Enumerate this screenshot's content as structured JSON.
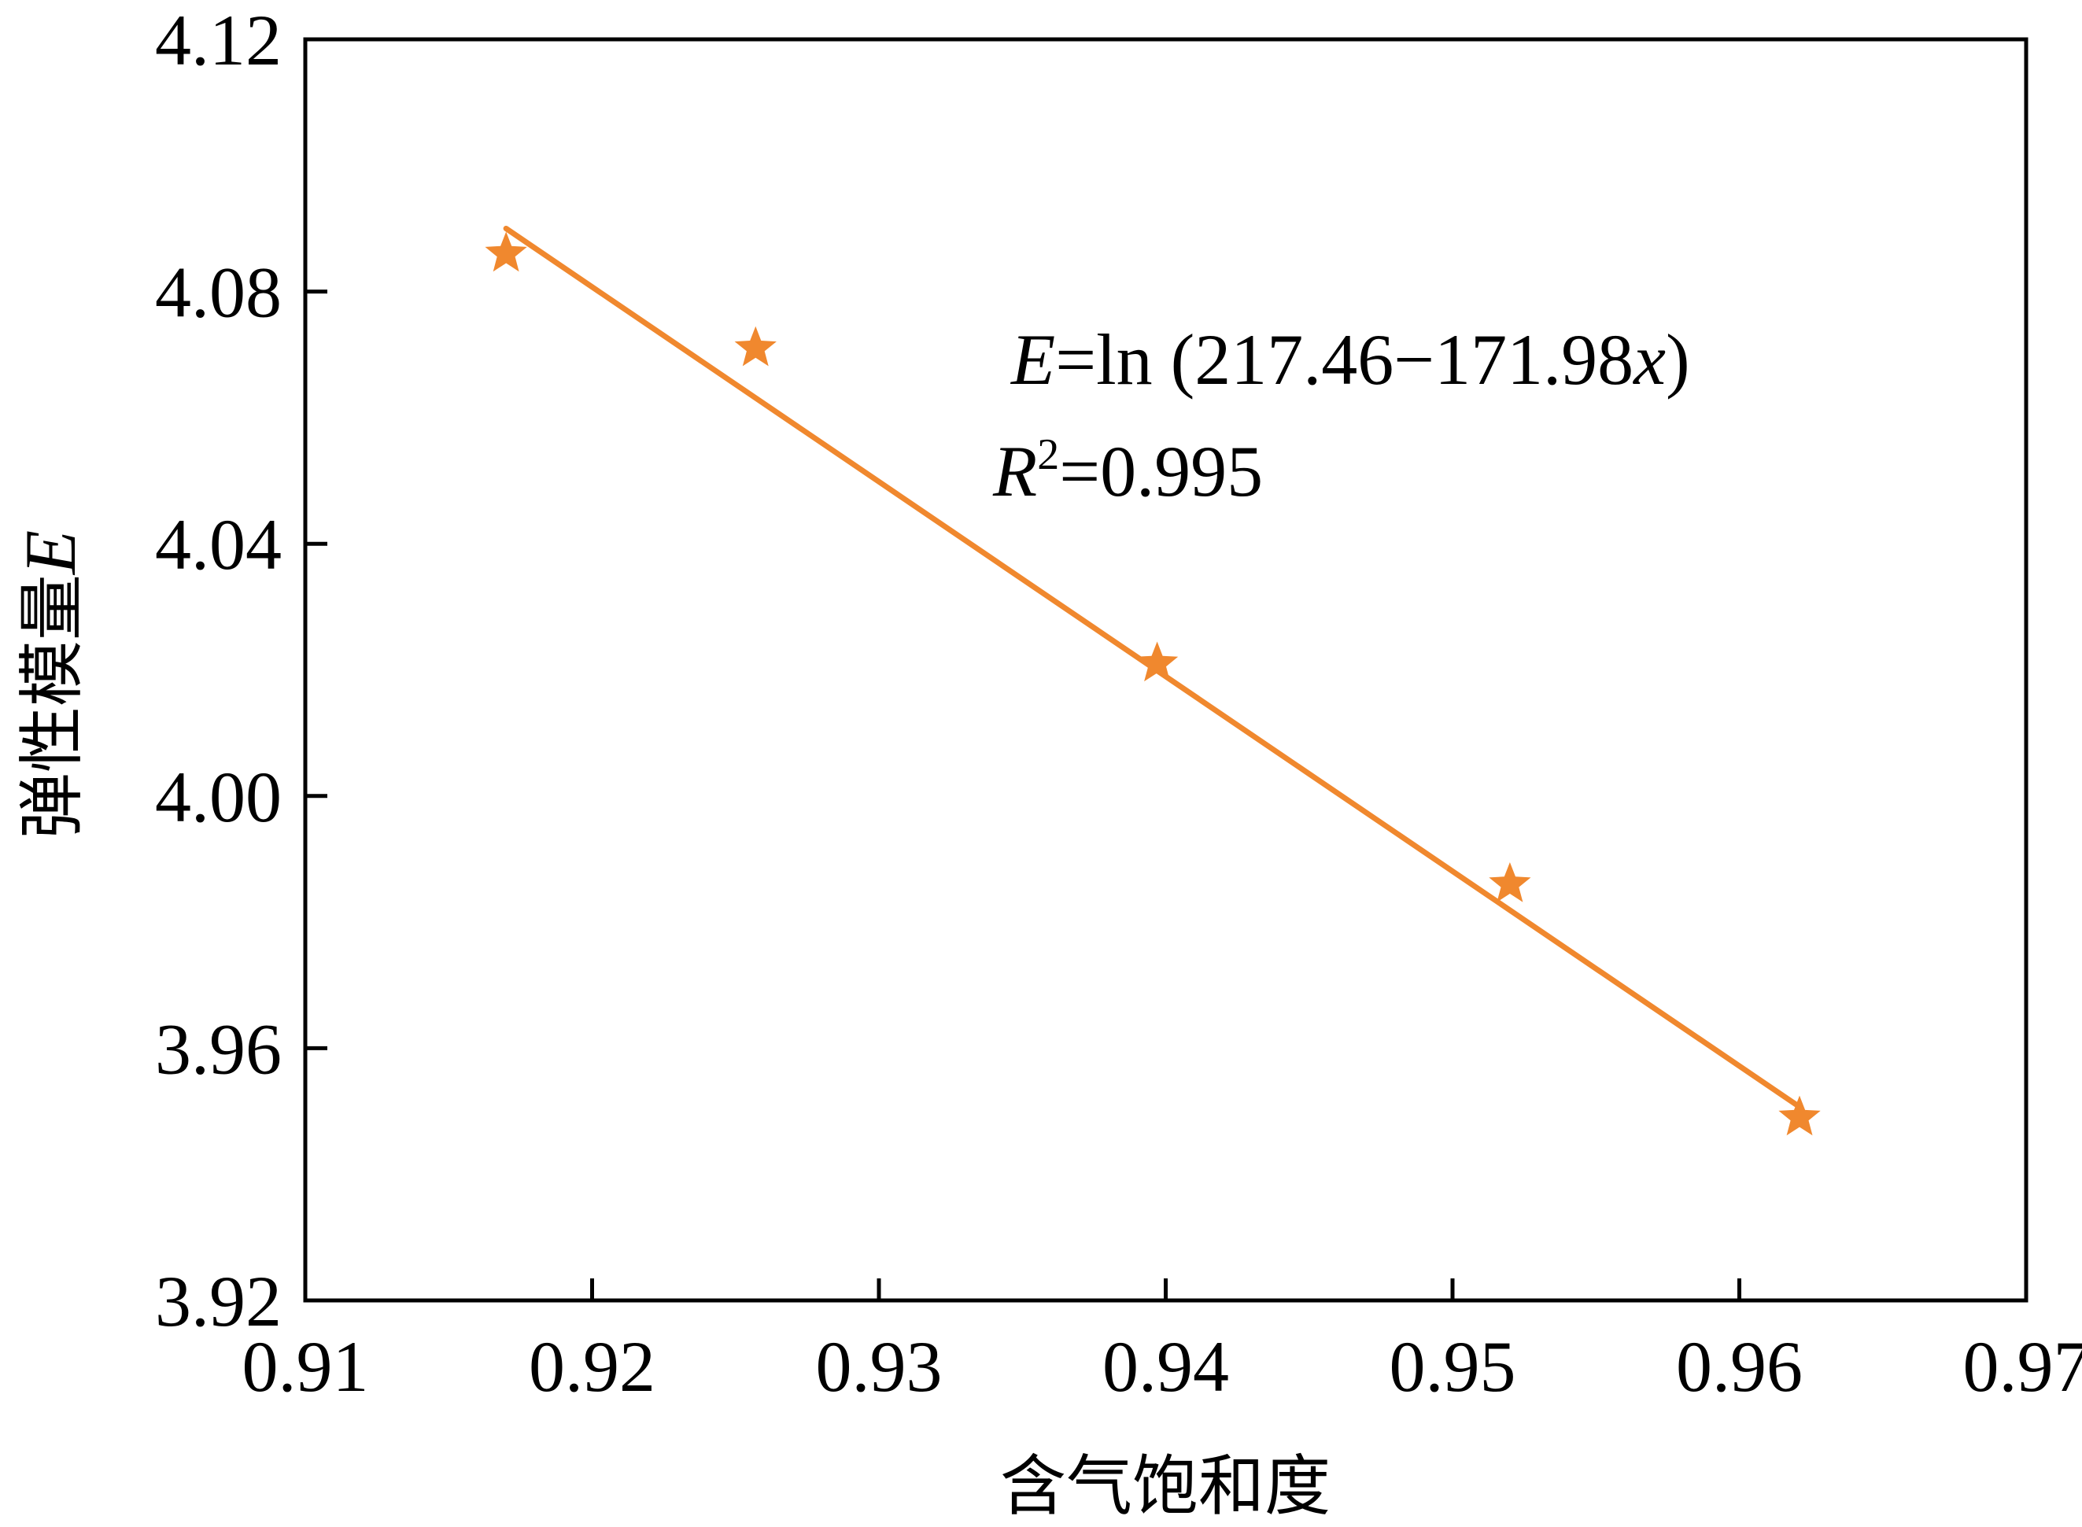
{
  "chart_data": {
    "type": "scatter",
    "xlabel": "含气饱和度",
    "ylabel_text": "弹性模量",
    "ylabel_var": "E",
    "xlim": [
      0.91,
      0.97
    ],
    "ylim": [
      3.92,
      4.12
    ],
    "x_ticks": [
      "0.91",
      "0.92",
      "0.93",
      "0.94",
      "0.95",
      "0.96",
      "0.97"
    ],
    "y_ticks": [
      "3.92",
      "3.96",
      "4.00",
      "4.04",
      "4.08",
      "4.12"
    ],
    "grid": false,
    "marker": "star",
    "color": "#F0882E",
    "points": [
      {
        "x": 0.917,
        "y": 4.086
      },
      {
        "x": 0.9257,
        "y": 4.071
      },
      {
        "x": 0.9397,
        "y": 4.021
      },
      {
        "x": 0.952,
        "y": 3.986
      },
      {
        "x": 0.9621,
        "y": 3.949
      }
    ],
    "fit_line": {
      "x": [
        0.917,
        0.962
      ],
      "y": [
        4.09,
        3.951
      ]
    },
    "annotations": {
      "equation_var": "E",
      "equation_mid": "=ln (217.46−171.98",
      "equation_x": "x",
      "equation_end": ")",
      "r2_var": "R",
      "r2_sup": "2",
      "r2_value": "=0.995"
    }
  }
}
